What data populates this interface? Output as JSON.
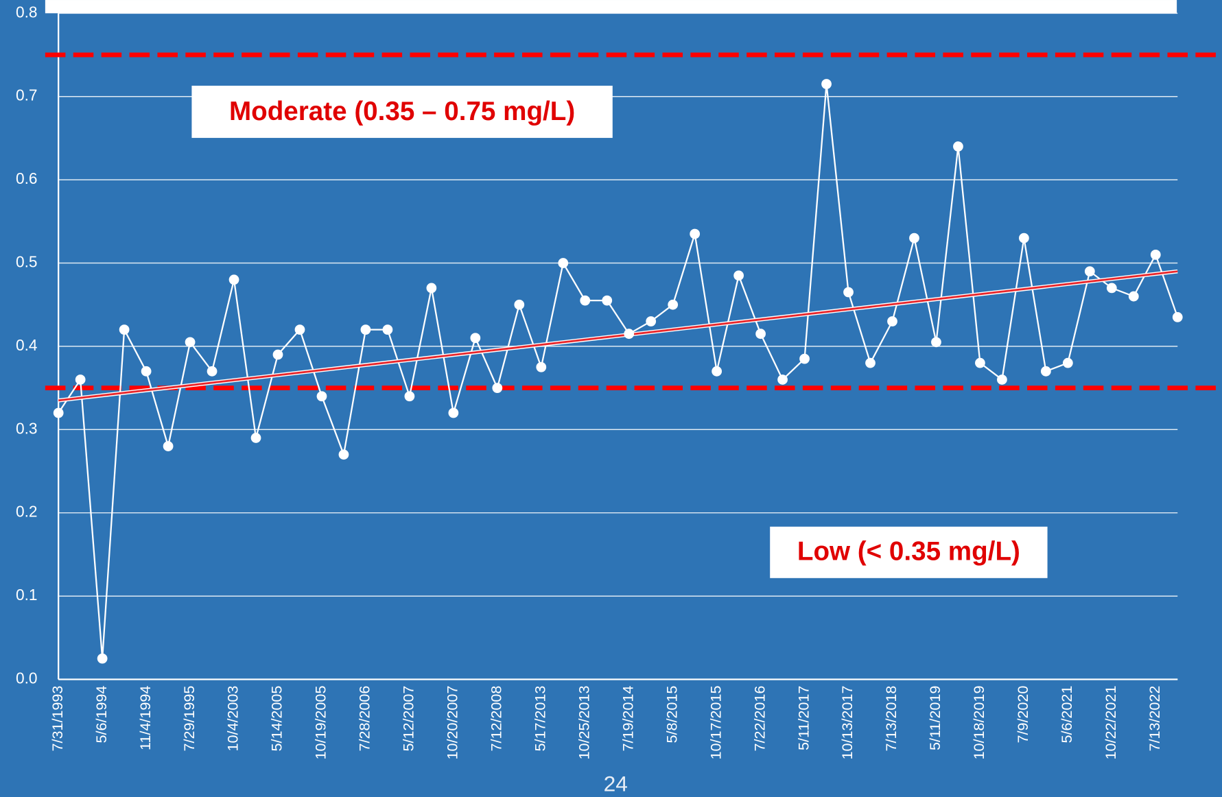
{
  "chart_data": {
    "type": "line",
    "categories": [
      "7/31/1993",
      null,
      "5/6/1994",
      null,
      "11/4/1994",
      null,
      "7/29/1995",
      null,
      "10/4/2003",
      null,
      "5/14/2005",
      null,
      "10/19/2005",
      null,
      "7/28/2006",
      null,
      "5/12/2007",
      null,
      "10/20/2007",
      null,
      "7/12/2008",
      null,
      "5/17/2013",
      null,
      "10/25/2013",
      null,
      "7/19/2014",
      null,
      "5/8/2015",
      null,
      "10/17/2015",
      null,
      "7/22/2016",
      null,
      "5/11/2017",
      null,
      "10/13/2017",
      null,
      "7/13/2018",
      null,
      "5/11/2019",
      null,
      "10/18/2019",
      null,
      "7/9/2020",
      null,
      "5/6/2021",
      null,
      "10/22/2021",
      null,
      "7/13/2022",
      null
    ],
    "values": [
      0.32,
      0.36,
      0.025,
      0.42,
      0.37,
      0.28,
      0.405,
      0.37,
      0.48,
      0.29,
      0.39,
      0.42,
      0.34,
      0.27,
      0.42,
      0.42,
      0.34,
      0.47,
      0.32,
      0.41,
      0.35,
      0.45,
      0.375,
      0.5,
      0.455,
      0.455,
      0.415,
      0.43,
      0.45,
      0.535,
      0.37,
      0.485,
      0.415,
      0.36,
      0.385,
      0.715,
      0.465,
      0.38,
      0.43,
      0.53,
      0.405,
      0.64,
      0.38,
      0.36,
      0.53,
      0.37,
      0.38,
      0.49,
      0.47,
      0.46,
      0.51,
      0.435
    ],
    "color": "#ffffff",
    "trendline": {
      "start": 0.335,
      "end": 0.49,
      "color": "#e8262b"
    },
    "thresholds": [
      {
        "value": 0.75,
        "color": "#ff0000"
      },
      {
        "value": 0.35,
        "color": "#ff0000"
      }
    ],
    "annotations": [
      "Moderate (0.35 – 0.75 mg/L)",
      "Low (< 0.35 mg/L)"
    ],
    "ylim": [
      0,
      0.8
    ],
    "yticks": [
      {
        "value": 0,
        "label": "0.0"
      },
      0.1,
      0.2,
      0.3,
      0.4,
      0.5,
      0.6,
      0.7,
      0.8
    ],
    "grid": true
  },
  "page_number": "24"
}
